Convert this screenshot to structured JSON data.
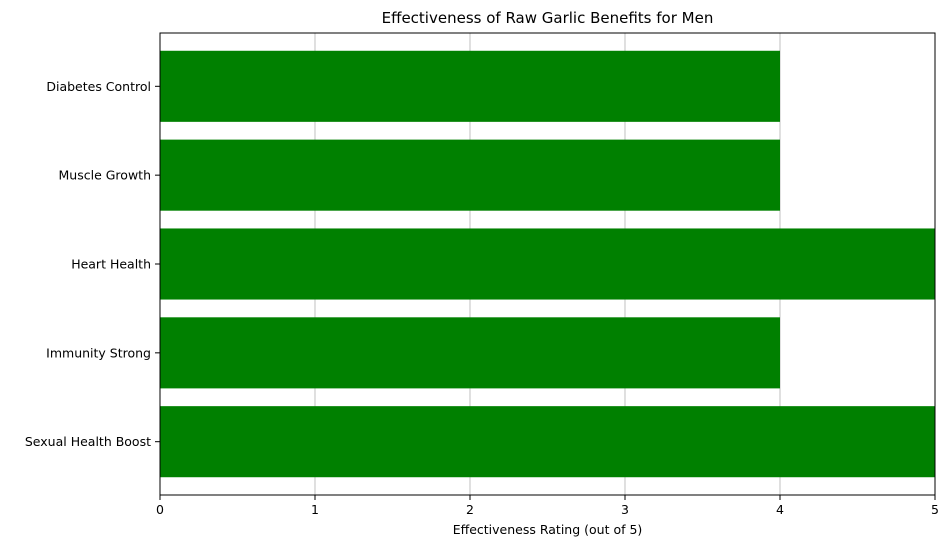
{
  "chart_data": {
    "type": "bar",
    "orientation": "horizontal",
    "title": "Effectiveness of Raw Garlic Benefits for Men",
    "xlabel": "Effectiveness Rating (out of 5)",
    "ylabel": "",
    "categories": [
      "Sexual Health Boost",
      "Immunity Strong",
      "Heart Health",
      "Muscle Growth",
      "Diabetes Control"
    ],
    "values": [
      5,
      4,
      5,
      4,
      4
    ],
    "xlim": [
      0,
      5
    ],
    "xticks": [
      "0",
      "1",
      "2",
      "3",
      "4",
      "5"
    ],
    "grid": "vertical",
    "bar_color": "#008000"
  }
}
